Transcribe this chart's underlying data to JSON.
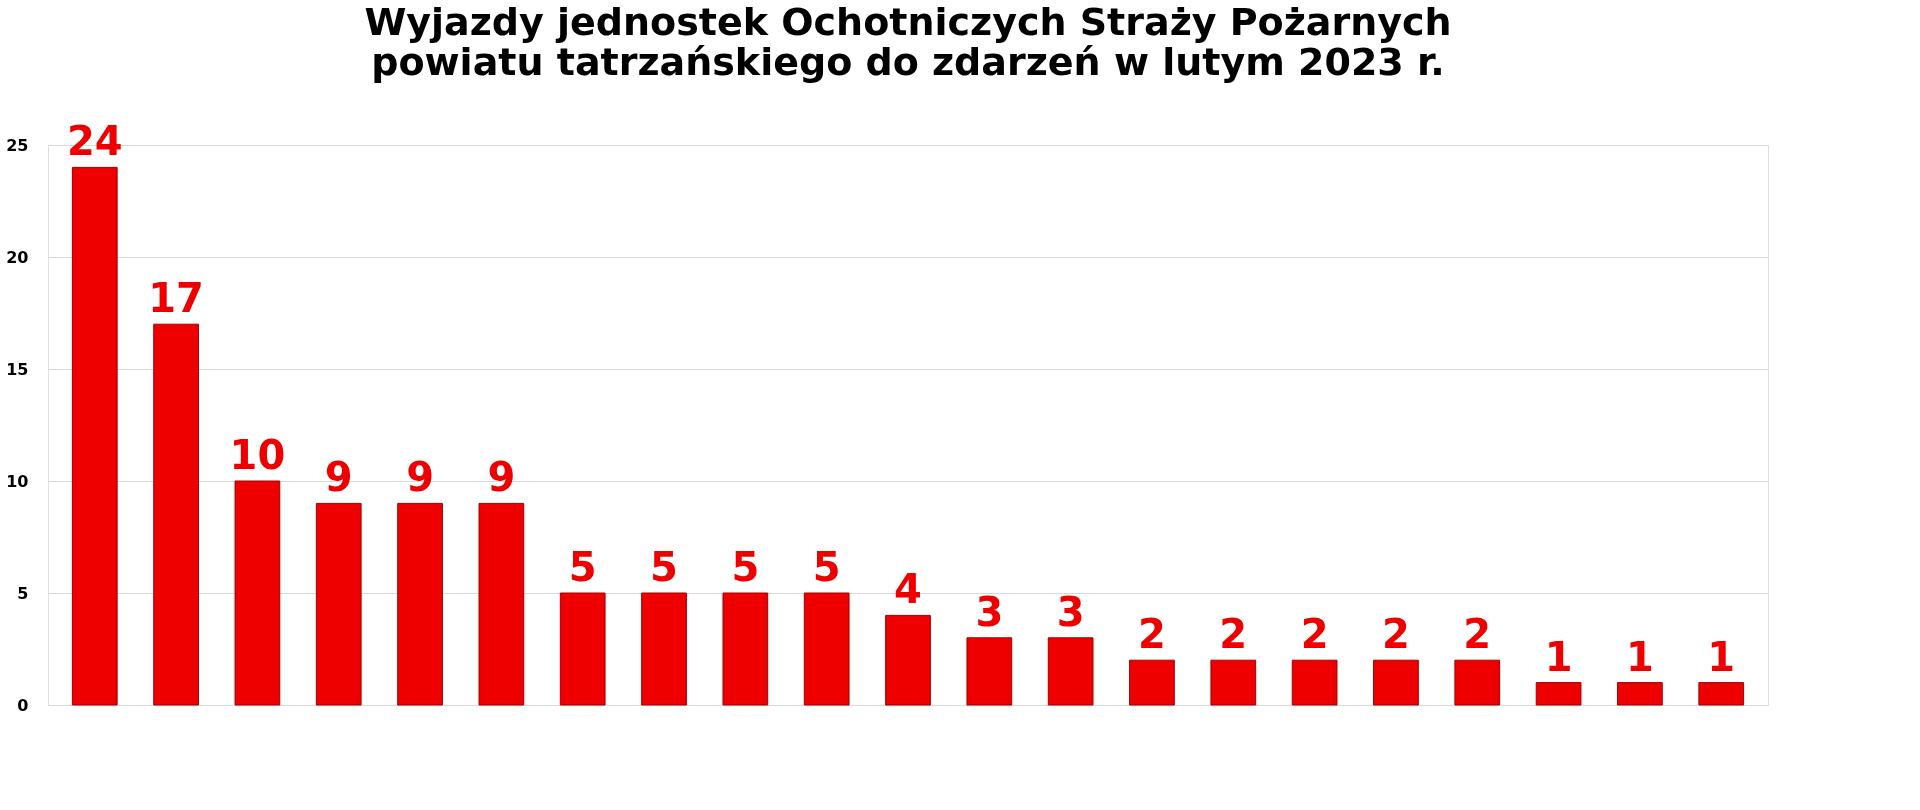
{
  "chart_data": {
    "type": "bar",
    "title": [
      "Wyjazdy jednostek Ochotniczych Straży Pożarnych",
      "powiatu tatrzańskiego do zdarzeń w lutym 2023 r."
    ],
    "categories": [
      null,
      null,
      null,
      null,
      null,
      null,
      null,
      null,
      null,
      null,
      null,
      null,
      null,
      null,
      null,
      null,
      null,
      null,
      null,
      null,
      null
    ],
    "values": [
      24,
      17,
      10,
      9,
      9,
      9,
      5,
      5,
      5,
      5,
      4,
      3,
      3,
      2,
      2,
      2,
      2,
      2,
      1,
      1,
      1
    ],
    "color": "#ee0000",
    "ylim": [
      0,
      25
    ],
    "yticks": [
      0,
      5,
      10,
      15,
      20,
      25
    ],
    "grid": "y",
    "data_labels": true,
    "tick_labels": "y"
  }
}
